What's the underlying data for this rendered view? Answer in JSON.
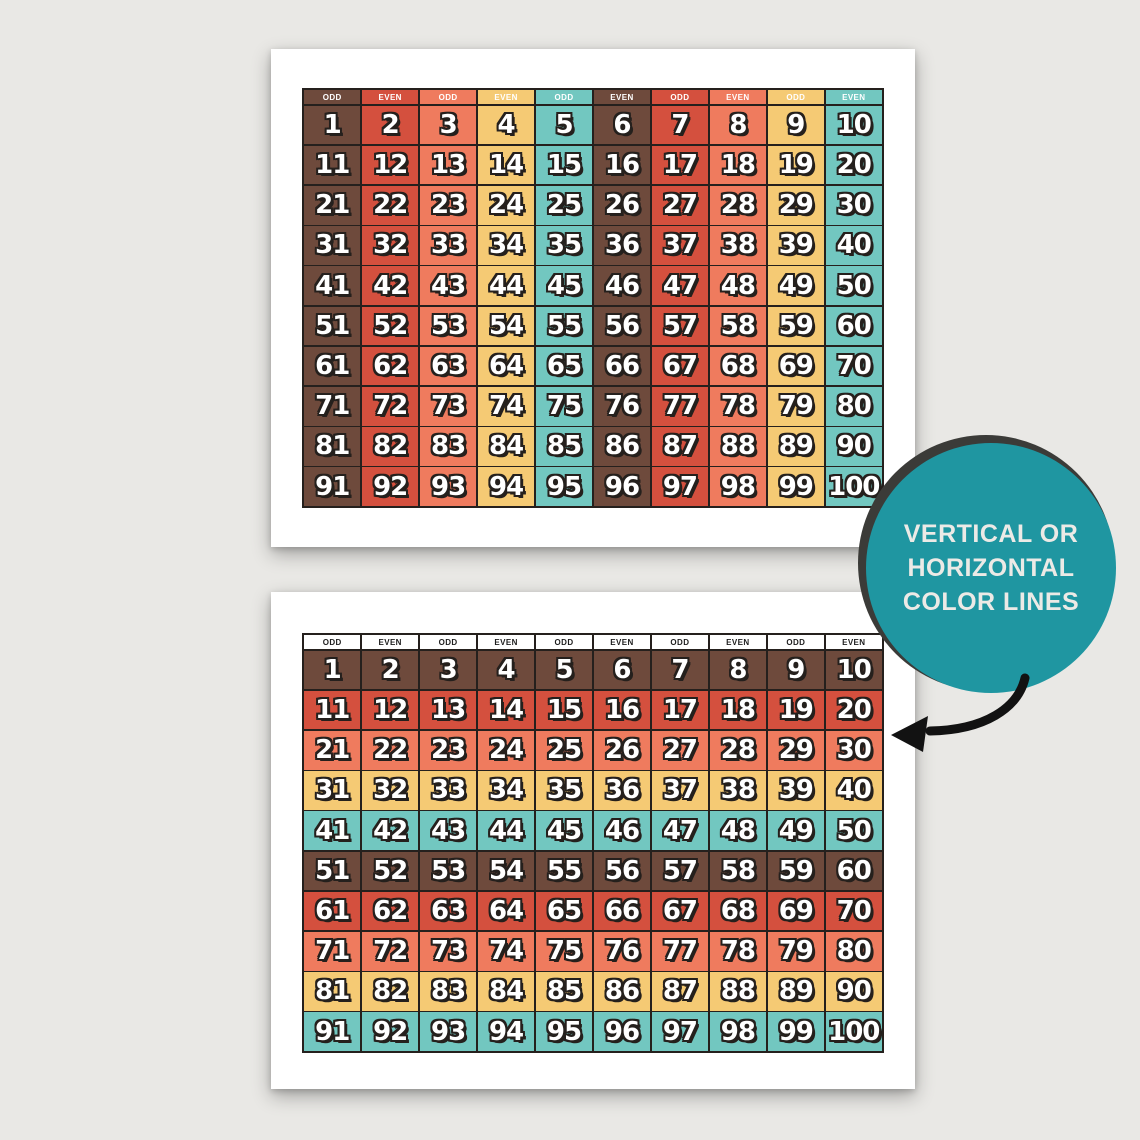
{
  "background_color": "#e9e8e5",
  "colors": {
    "brown": "#6e4a3c",
    "red": "#d4503e",
    "salmon": "#ef7b5e",
    "yellow": "#f5ca74",
    "teal": "#72c7c0",
    "grid_border": "#25201d",
    "header_text_vertical": "#ffffff",
    "header_bg_horizontal": "#ffffff",
    "header_text_horizontal": "#1d1d1d",
    "badge_fill": "#1f96a1",
    "badge_ring": "#3b3b38",
    "badge_text": "#eceae6",
    "arrow": "#121212"
  },
  "charts": {
    "header_labels": [
      "ODD",
      "EVEN",
      "ODD",
      "EVEN",
      "ODD",
      "EVEN",
      "ODD",
      "EVEN",
      "ODD",
      "EVEN"
    ],
    "rows": [
      [
        1,
        2,
        3,
        4,
        5,
        6,
        7,
        8,
        9,
        10
      ],
      [
        11,
        12,
        13,
        14,
        15,
        16,
        17,
        18,
        19,
        20
      ],
      [
        21,
        22,
        23,
        24,
        25,
        26,
        27,
        28,
        29,
        30
      ],
      [
        31,
        32,
        33,
        34,
        35,
        36,
        37,
        38,
        39,
        40
      ],
      [
        41,
        42,
        43,
        44,
        45,
        46,
        47,
        48,
        49,
        50
      ],
      [
        51,
        52,
        53,
        54,
        55,
        56,
        57,
        58,
        59,
        60
      ],
      [
        61,
        62,
        63,
        64,
        65,
        66,
        67,
        68,
        69,
        70
      ],
      [
        71,
        72,
        73,
        74,
        75,
        76,
        77,
        78,
        79,
        80
      ],
      [
        81,
        82,
        83,
        84,
        85,
        86,
        87,
        88,
        89,
        90
      ],
      [
        91,
        92,
        93,
        94,
        95,
        96,
        97,
        98,
        99,
        100
      ]
    ],
    "color_cycle": [
      "brown",
      "red",
      "salmon",
      "yellow",
      "teal"
    ],
    "top_chart": {
      "orientation": "vertical",
      "header_style": "colored"
    },
    "bottom_chart": {
      "orientation": "horizontal",
      "header_style": "white"
    }
  },
  "badge": {
    "lines": [
      "VERTICAL OR",
      "HORIZONTAL",
      "COLOR LINES"
    ]
  }
}
